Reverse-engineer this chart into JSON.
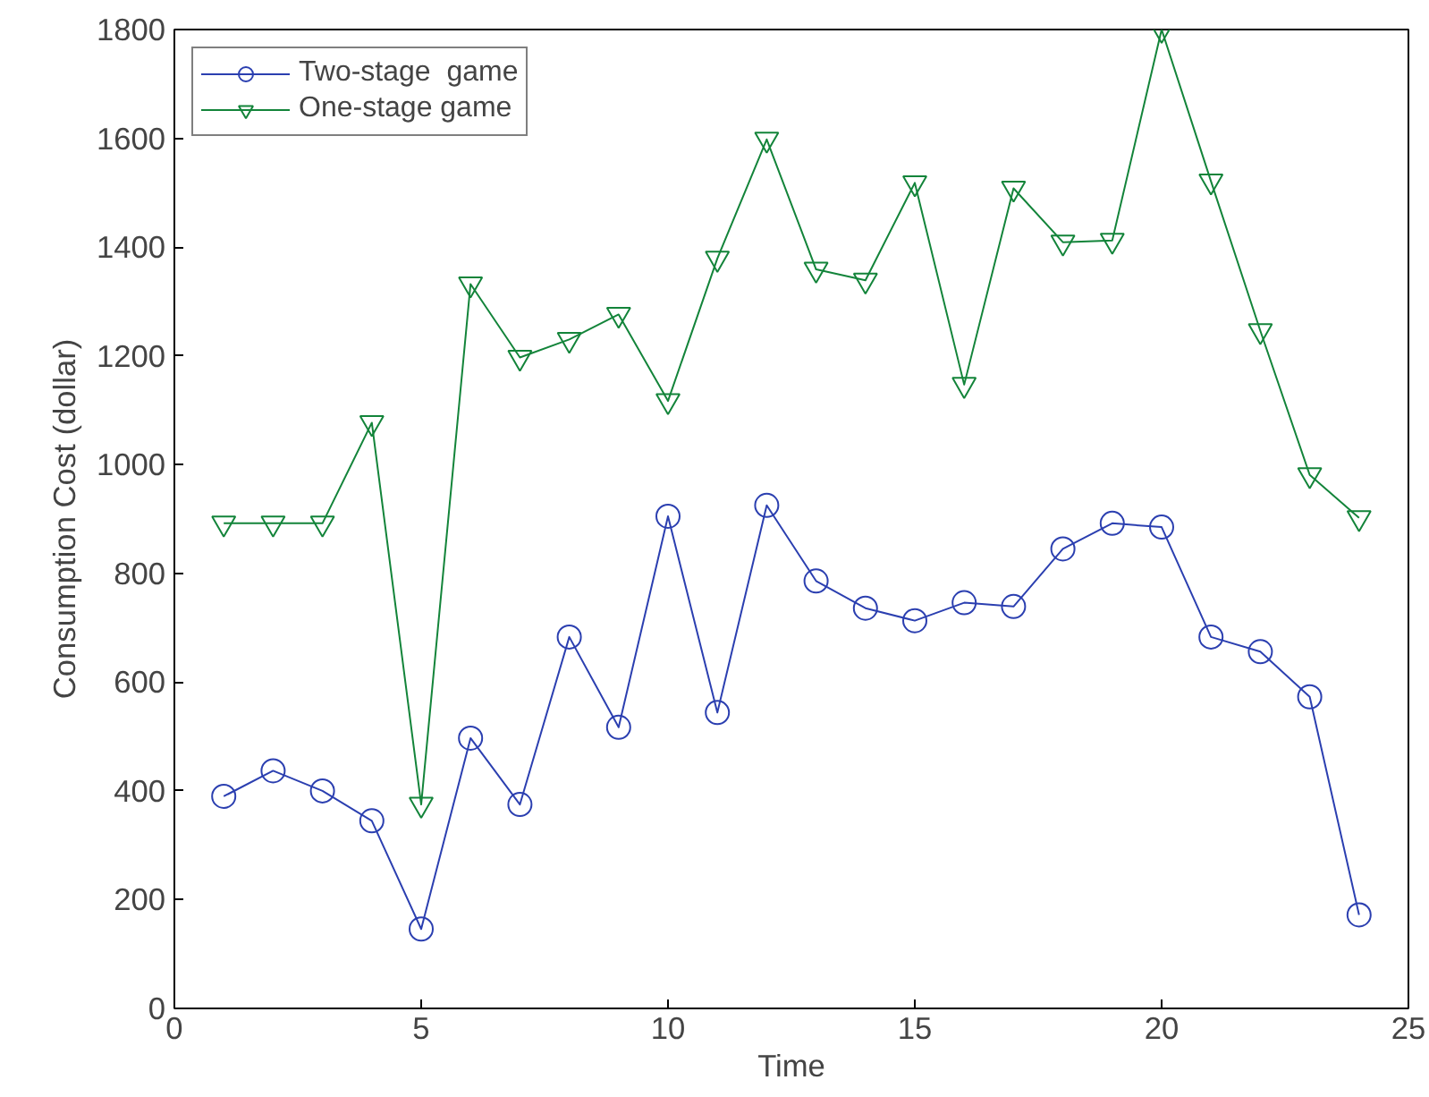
{
  "chart_data": {
    "type": "line",
    "xlabel": "Time",
    "ylabel": "Consumption Cost (dollar)",
    "x": [
      1,
      2,
      3,
      4,
      5,
      6,
      7,
      8,
      9,
      10,
      11,
      12,
      13,
      14,
      15,
      16,
      17,
      18,
      19,
      20,
      21,
      22,
      23,
      24
    ],
    "series": [
      {
        "name": "Two-stage  game",
        "color": "#2b3fb0",
        "marker": "circle",
        "values": [
          390,
          437,
          400,
          345,
          146,
          497,
          375,
          683,
          517,
          905,
          544,
          925,
          786,
          736,
          713,
          746,
          739,
          845,
          892,
          885,
          683,
          656,
          573,
          172
        ]
      },
      {
        "name": "One-stage game",
        "color": "#13843a",
        "marker": "triangle",
        "values": [
          892,
          892,
          892,
          1077,
          375,
          1332,
          1197,
          1230,
          1276,
          1117,
          1379,
          1598,
          1359,
          1339,
          1518,
          1147,
          1508,
          1409,
          1412,
          1800,
          1521,
          1246,
          981,
          902
        ]
      }
    ],
    "xlim": [
      0,
      25
    ],
    "xticks": [
      0,
      5,
      10,
      15,
      20,
      25
    ],
    "ylim": [
      0,
      1800
    ],
    "yticks": [
      0,
      200,
      400,
      600,
      800,
      1000,
      1200,
      1400,
      1600,
      1800
    ],
    "grid": false,
    "legend": "top left",
    "line_style": "solid"
  }
}
